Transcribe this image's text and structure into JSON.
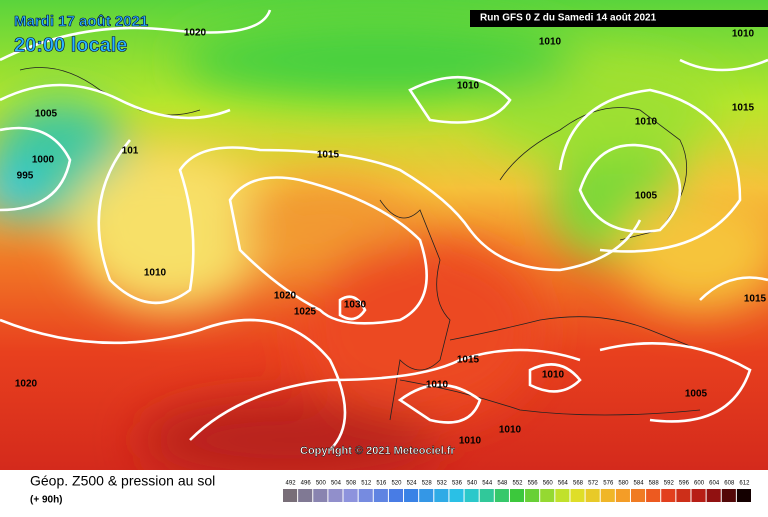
{
  "header": {
    "date": "Mardi 17 août 2021",
    "time": "20:00 locale",
    "run": "Run GFS 0 Z du Samedi 14 août 2021"
  },
  "isobar_labels": [
    "1020",
    "1010",
    "1010",
    "1005",
    "1010",
    "1015",
    "1010",
    "101",
    "1015",
    "1000",
    "995",
    "1005",
    "1010",
    "1020",
    "1025",
    "1030",
    "1015",
    "1015",
    "1010",
    "1010",
    "1020",
    "1005",
    "1010",
    "1010"
  ],
  "copyright": "Copyright © 2021 Meteociel.fr",
  "footer": {
    "title": "Géop. Z500 & pression au sol",
    "lead": "(+ 90h)"
  },
  "colorbar": {
    "labels": [
      492,
      496,
      500,
      504,
      508,
      512,
      516,
      520,
      524,
      528,
      532,
      536,
      540,
      544,
      548,
      552,
      556,
      560,
      564,
      568,
      572,
      576,
      580,
      584,
      588,
      592,
      596,
      600,
      604,
      608,
      612
    ]
  }
}
